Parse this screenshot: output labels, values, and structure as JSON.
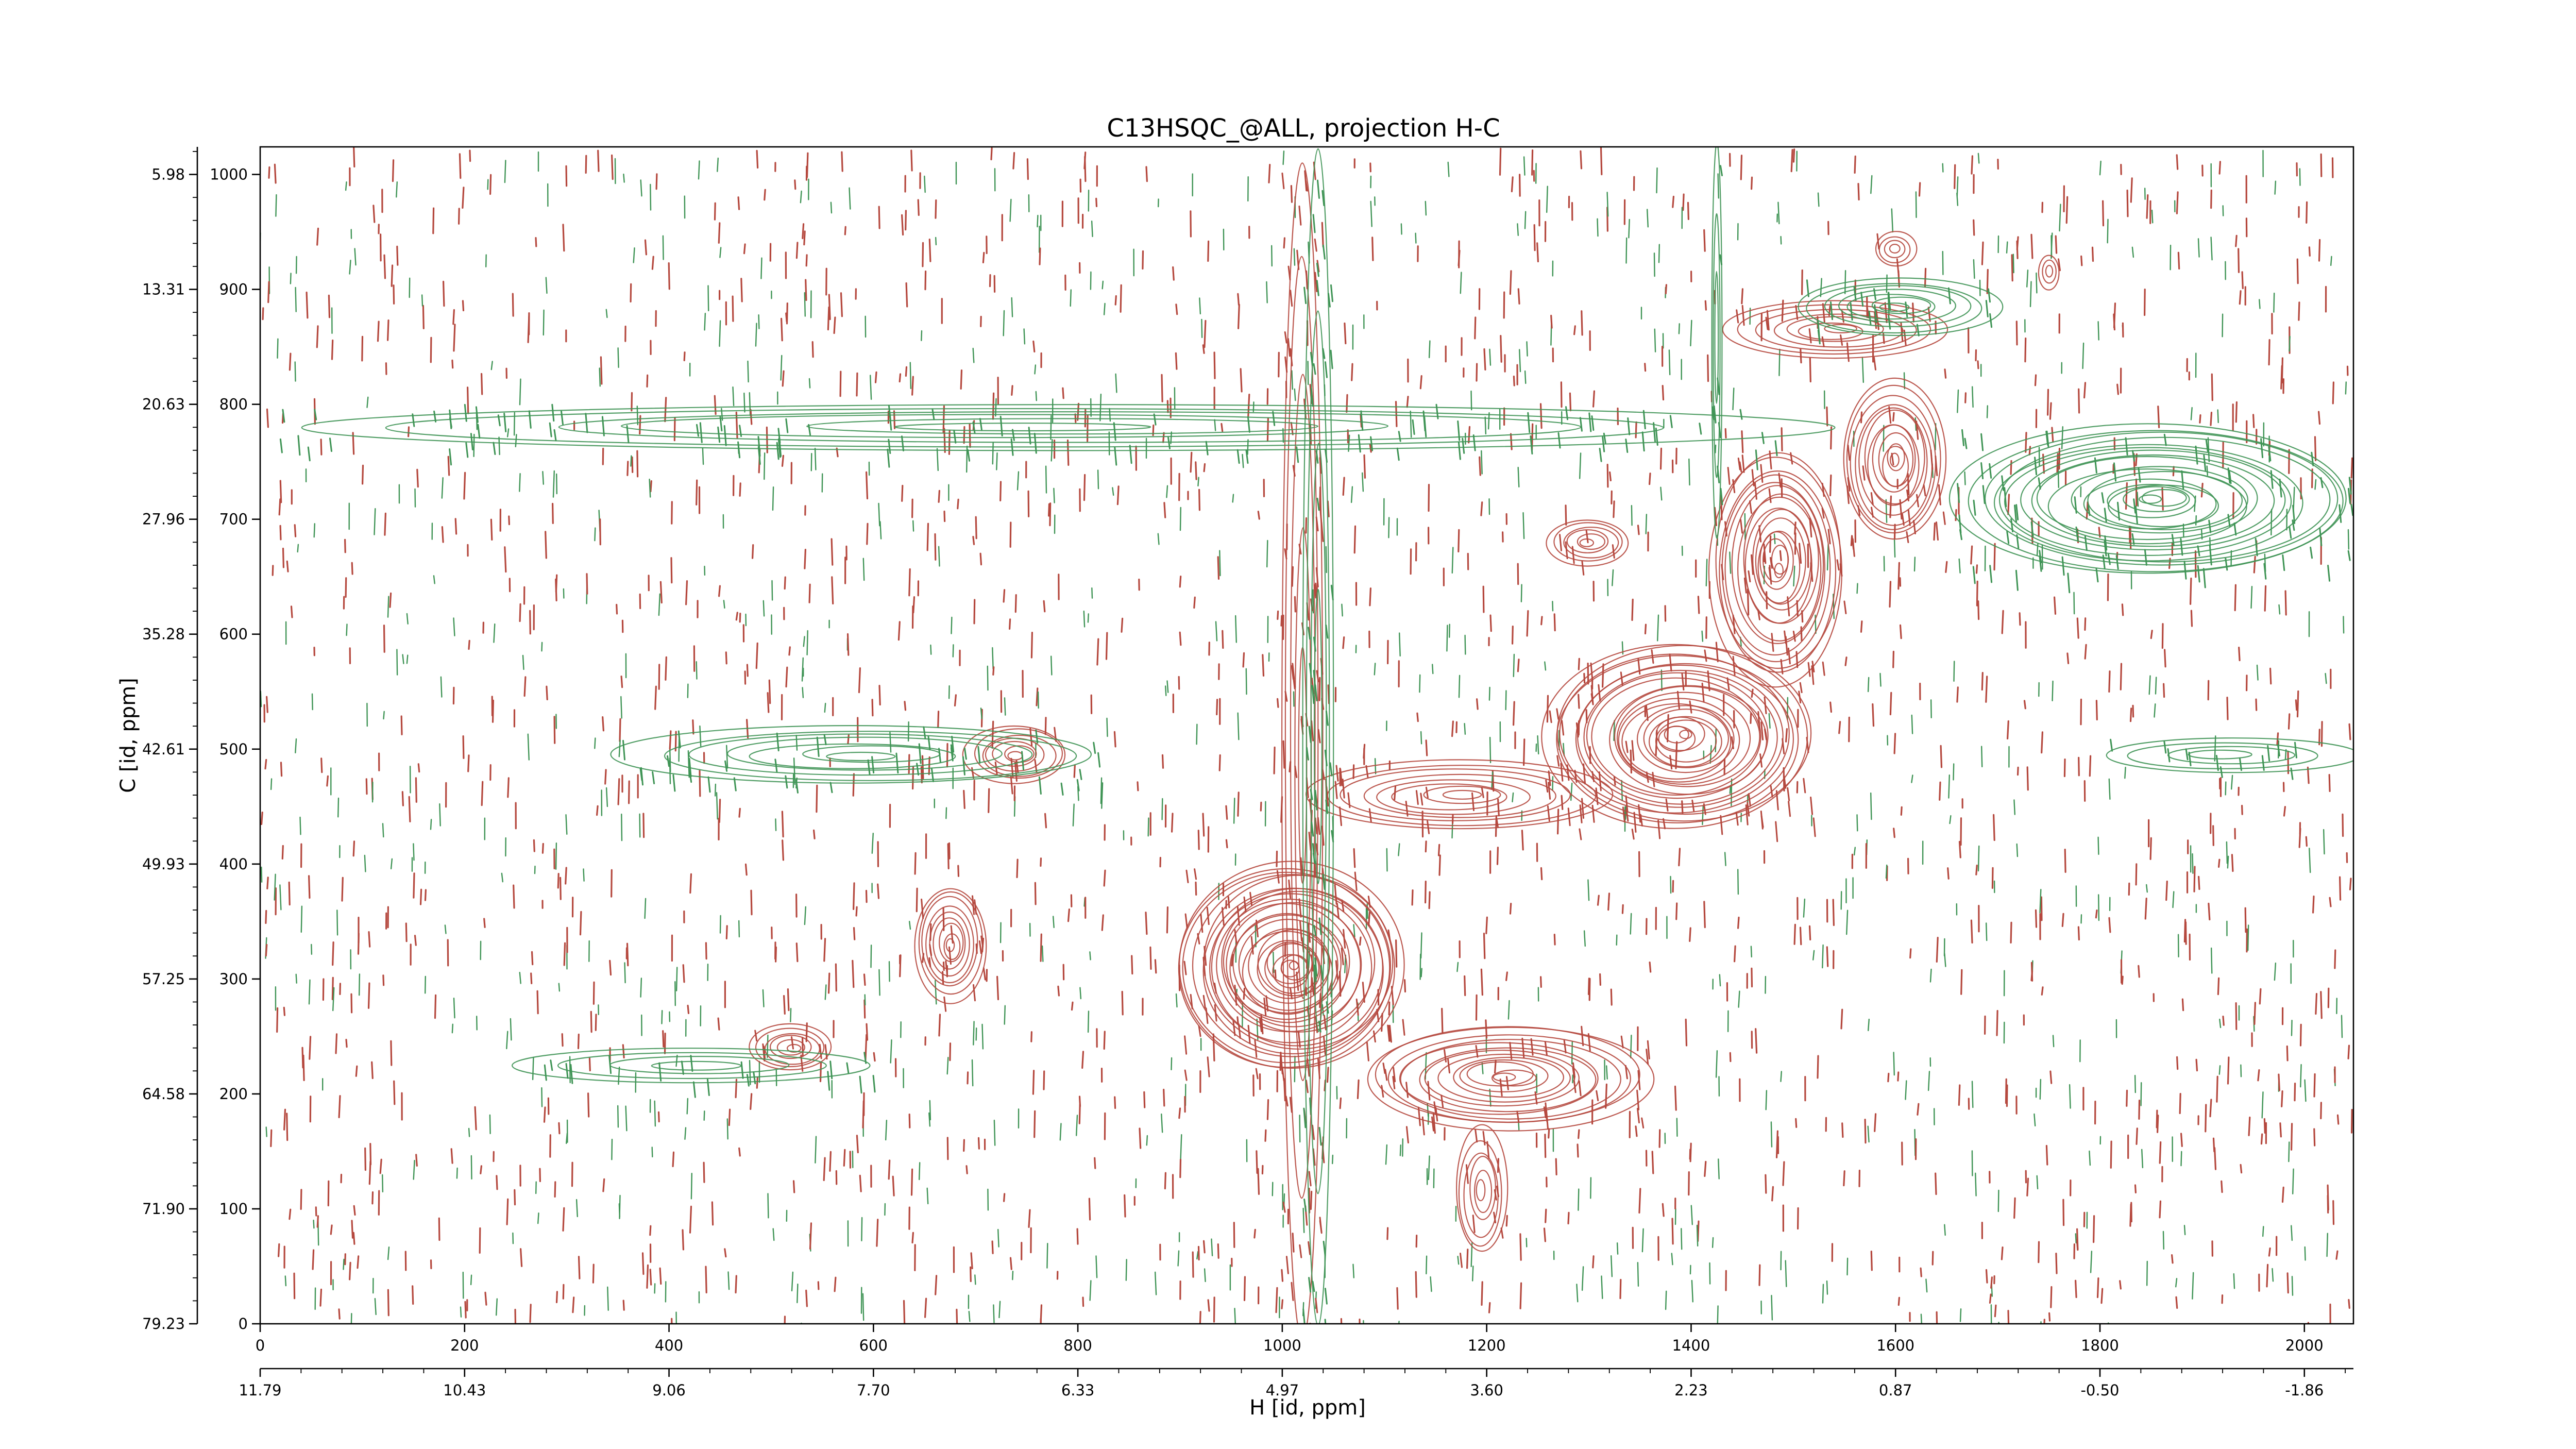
{
  "chart_data": {
    "type": "heatmap",
    "title": "C13HSQC_@ALL, projection H-C",
    "xlabel": "H [id, ppm]",
    "ylabel": "C [id, ppm]",
    "x_index_ticks": [
      "0",
      "200",
      "400",
      "600",
      "800",
      "1000",
      "1200",
      "1400",
      "1600",
      "1800",
      "2000"
    ],
    "x_index_range": [
      0,
      2048
    ],
    "x_ppm_ticks": [
      "11.79",
      "10.43",
      "9.06",
      "7.70",
      "6.33",
      "4.97",
      "3.60",
      "2.23",
      "0.87",
      "-0.50",
      "-1.86"
    ],
    "y_index_ticks": [
      "0",
      "100",
      "200",
      "300",
      "400",
      "500",
      "600",
      "700",
      "800",
      "900",
      "1000"
    ],
    "y_index_range": [
      0,
      1024
    ],
    "y_ppm_ticks": [
      "79.23",
      "71.90",
      "64.58",
      "57.25",
      "49.93",
      "42.61",
      "35.28",
      "27.96",
      "20.63",
      "13.31",
      "5.98"
    ],
    "colors": {
      "positive": "#b5483e",
      "negative": "#3f9455"
    },
    "series": [
      {
        "sign": "positive",
        "regions": [
          {
            "x": [
              1000,
              1040
            ],
            "y": [
              0,
              1024
            ]
          },
          {
            "x": [
              900,
              1120
            ],
            "y": [
              220,
              400
            ]
          },
          {
            "x": [
              1080,
              1360
            ],
            "y": [
              170,
              260
            ]
          },
          {
            "x": [
              1170,
              1220
            ],
            "y": [
              60,
              170
            ]
          },
          {
            "x": [
              1020,
              1320
            ],
            "y": [
              430,
              490
            ]
          },
          {
            "x": [
              1260,
              1520
            ],
            "y": [
              430,
              590
            ]
          },
          {
            "x": [
              1420,
              1550
            ],
            "y": [
              560,
              760
            ]
          },
          {
            "x": [
              1430,
              1650
            ],
            "y": [
              840,
              890
            ]
          },
          {
            "x": [
              1550,
              1650
            ],
            "y": [
              680,
              820
            ]
          },
          {
            "x": [
              690,
              790
            ],
            "y": [
              470,
              520
            ]
          },
          {
            "x": [
              640,
              710
            ],
            "y": [
              280,
              380
            ]
          },
          {
            "x": [
              480,
              560
            ],
            "y": [
              220,
              260
            ]
          },
          {
            "x": [
              1260,
              1340
            ],
            "y": [
              660,
              700
            ]
          },
          {
            "x": [
              1580,
              1620
            ],
            "y": [
              920,
              950
            ]
          },
          {
            "x": [
              1740,
              1760
            ],
            "y": [
              900,
              930
            ]
          }
        ]
      },
      {
        "sign": "negative",
        "regions": [
          {
            "x": [
              1020,
              1050
            ],
            "y": [
              0,
              1024
            ]
          },
          {
            "x": [
              1420,
              1430
            ],
            "y": [
              680,
              1024
            ]
          },
          {
            "x": [
              350,
              820
            ],
            "y": [
              470,
              520
            ]
          },
          {
            "x": [
              250,
              600
            ],
            "y": [
              210,
              240
            ]
          },
          {
            "x": [
              1660,
              2048
            ],
            "y": [
              650,
              780
            ]
          },
          {
            "x": [
              1500,
              1700
            ],
            "y": [
              860,
              910
            ]
          },
          {
            "x": [
              1800,
              2048
            ],
            "y": [
              480,
              510
            ]
          },
          {
            "x": [
              0,
              1500
            ],
            "y": [
              760,
              800
            ]
          }
        ]
      }
    ],
    "grid": false,
    "legend": "none"
  }
}
